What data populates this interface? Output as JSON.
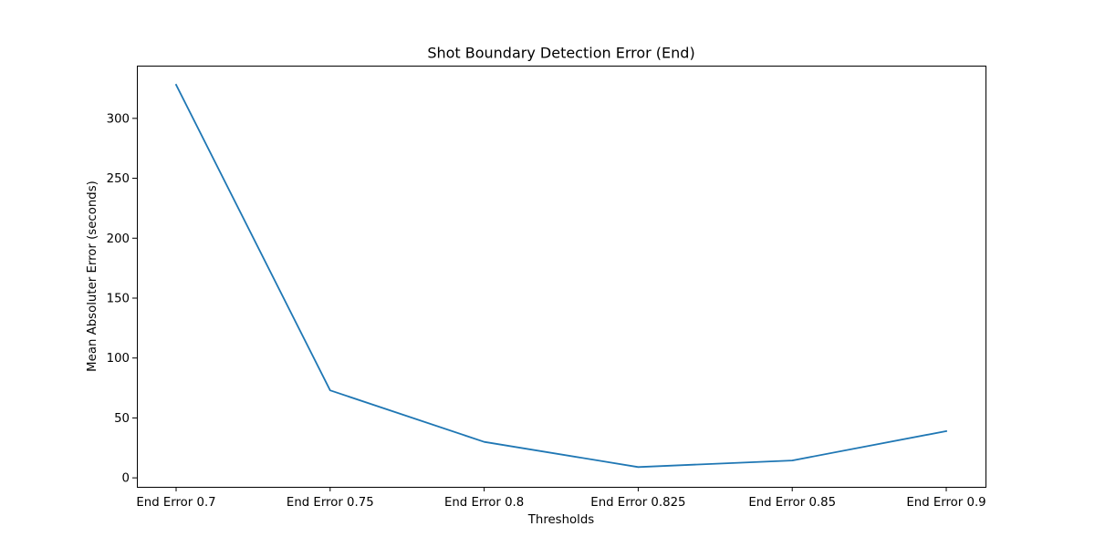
{
  "chart_data": {
    "type": "line",
    "title": "Shot Boundary Detection Error (End)",
    "xlabel": "Thresholds",
    "ylabel": "Mean Absoluter Error (seconds)",
    "categories": [
      "End Error 0.7",
      "End Error 0.75",
      "End Error 0.8",
      "End Error 0.825",
      "End Error 0.85",
      "End Error 0.9"
    ],
    "series": [
      {
        "values": [
          328,
          73,
          30,
          9,
          14.5,
          39
        ],
        "color": "#1f77b4"
      }
    ],
    "yticks": [
      0,
      50,
      100,
      150,
      200,
      250,
      300
    ],
    "ylim": [
      -7.5,
      344
    ],
    "grid": false,
    "legend": false
  }
}
